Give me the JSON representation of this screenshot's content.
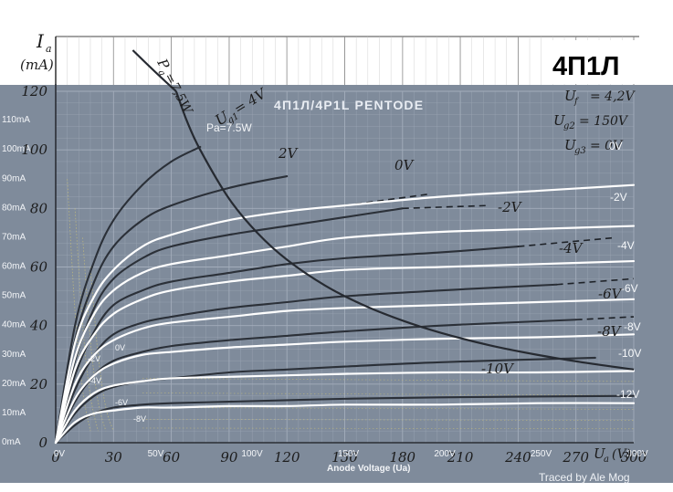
{
  "header": {
    "y_axis_symbol": "I",
    "y_axis_subscript": "a",
    "y_axis_unit": "(mA)",
    "logo_text": "4П1Л"
  },
  "overlay": {
    "title": "4П1Л/4P1L PENTODE",
    "pa_label": "Pa=7.5W",
    "x_axis_title": "Anode Voltage (Ua)",
    "credit": "Traced by Ale Mog",
    "y_ticks": [
      "0mA",
      "10mA",
      "20mA",
      "30mA",
      "40mA",
      "50mA",
      "60mA",
      "70mA",
      "80mA",
      "90mA",
      "100mA",
      "110mA"
    ],
    "x_ticks": [
      "0V",
      "50V",
      "100V",
      "150V",
      "200V",
      "250V",
      "300V"
    ],
    "curve_labels": [
      "0V",
      "-2V",
      "-4V",
      "-6V",
      "-8V",
      "-10V",
      "-12V"
    ],
    "inner_labels": [
      "0V",
      "-2V",
      "-4V",
      "-6V",
      "-8V"
    ]
  },
  "scan": {
    "y_ticks": [
      "0",
      "20",
      "40",
      "60",
      "80",
      "100",
      "120"
    ],
    "x_ticks": [
      "0",
      "30",
      "60",
      "90",
      "120",
      "150",
      "180",
      "210",
      "240",
      "270",
      "300"
    ],
    "x_unit": "U",
    "x_unit_sub": "a",
    "x_unit_suffix": "(V)",
    "pa_label": "P",
    "pa_sub": "a",
    "pa_value": "=7,5W",
    "cond_uf": "U",
    "cond_uf_sub": "f",
    "cond_uf_val": "= 4,2V",
    "cond_ug2": "U",
    "cond_ug2_sub": "g2",
    "cond_ug2_val": "= 150V",
    "cond_ug3": "U",
    "cond_ug3_sub": "g3",
    "cond_ug3_val": "= 0V",
    "ug1_label": "U",
    "ug1_sub": "g1",
    "ug1_val": "= 4V",
    "curve_labels": [
      "2V",
      "0V",
      "-2V",
      "-4V",
      "-6V",
      "-8V",
      "-10V"
    ]
  },
  "colors": {
    "panel": "#7f8b9b",
    "grid": "#a3adbb",
    "white_curve": "#ffffff",
    "dark_curve": "#2b3038",
    "hyperbola": "#262a31",
    "scan_ink": "#1c1c1c",
    "dashed": "#1e2228"
  },
  "chart_data": [
    {
      "type": "line",
      "title": "4П1Л/4P1L PENTODE",
      "xlabel": "Anode Voltage (Ua)",
      "ylabel": "",
      "xlim": [
        0,
        300
      ],
      "ylim": [
        0,
        120
      ],
      "grid": true,
      "series": [
        {
          "name": "0V",
          "color": "#ffffff",
          "x": [
            0,
            10,
            20,
            30,
            45,
            60,
            90,
            120,
            150,
            200,
            250,
            300
          ],
          "y": [
            0,
            34,
            50,
            59,
            67,
            71,
            76,
            79,
            81,
            84,
            86,
            88
          ]
        },
        {
          "name": "-2V",
          "color": "#ffffff",
          "x": [
            0,
            10,
            20,
            30,
            45,
            60,
            90,
            120,
            150,
            200,
            250,
            300
          ],
          "y": [
            0,
            29,
            44,
            52,
            58,
            61,
            64,
            67,
            70,
            72,
            73,
            74
          ]
        },
        {
          "name": "-4V",
          "color": "#ffffff",
          "x": [
            0,
            10,
            20,
            30,
            45,
            60,
            90,
            120,
            150,
            200,
            250,
            300
          ],
          "y": [
            0,
            25,
            37,
            44,
            49,
            52,
            55,
            57,
            59,
            60,
            61,
            62
          ]
        },
        {
          "name": "-6V",
          "color": "#ffffff",
          "x": [
            0,
            10,
            20,
            30,
            45,
            60,
            90,
            120,
            150,
            200,
            250,
            300
          ],
          "y": [
            0,
            20,
            30,
            35,
            39,
            41,
            43,
            45,
            46,
            47,
            48,
            49
          ]
        },
        {
          "name": "-8V",
          "color": "#ffffff",
          "x": [
            0,
            10,
            20,
            30,
            45,
            60,
            90,
            120,
            150,
            200,
            250,
            300
          ],
          "y": [
            0,
            15,
            23,
            27,
            30,
            31,
            32.5,
            33.5,
            34.5,
            35.5,
            36,
            37
          ]
        },
        {
          "name": "-10V",
          "color": "#ffffff",
          "x": [
            0,
            10,
            20,
            30,
            45,
            60,
            90,
            120,
            150,
            200,
            250,
            300
          ],
          "y": [
            0,
            11,
            17,
            19.5,
            21,
            22,
            22.5,
            23,
            23.5,
            24,
            24,
            24.5
          ]
        },
        {
          "name": "-12V",
          "color": "#ffffff",
          "x": [
            0,
            10,
            20,
            30,
            45,
            60,
            90,
            120,
            150,
            200,
            250,
            300
          ],
          "y": [
            0,
            7,
            10,
            11,
            12,
            12,
            12.5,
            12.5,
            13,
            13,
            13.5,
            13.5
          ]
        }
      ]
    },
    {
      "type": "line",
      "xlim": [
        0,
        300
      ],
      "ylim": [
        0,
        120
      ],
      "series": [
        {
          "name": "4V",
          "color": "#2b3038",
          "x": [
            0,
            10,
            20,
            30,
            45,
            60,
            75
          ],
          "y": [
            0,
            40,
            62,
            76,
            88,
            96,
            101
          ]
        },
        {
          "name": "2V",
          "color": "#2b3038",
          "x": [
            0,
            10,
            20,
            30,
            45,
            60,
            90,
            120
          ],
          "y": [
            0,
            35,
            55,
            67,
            76,
            81,
            87,
            91
          ]
        },
        {
          "name": "0V",
          "color": "#2b3038",
          "x": [
            0,
            10,
            20,
            30,
            45,
            60,
            90,
            120,
            150,
            180
          ],
          "y": [
            0,
            28,
            46,
            56,
            63,
            67,
            71,
            74,
            77,
            80
          ]
        },
        {
          "name": "-2V",
          "color": "#2b3038",
          "x": [
            0,
            10,
            20,
            30,
            45,
            60,
            90,
            120,
            150,
            200,
            240
          ],
          "y": [
            0,
            23,
            38,
            47,
            52,
            55,
            58,
            61,
            63,
            65,
            67
          ]
        },
        {
          "name": "-4V",
          "color": "#2b3038",
          "x": [
            0,
            10,
            20,
            30,
            45,
            60,
            90,
            120,
            150,
            200,
            260
          ],
          "y": [
            0,
            18,
            30,
            37,
            41,
            43,
            46,
            48,
            50,
            52,
            54
          ]
        },
        {
          "name": "-6V",
          "color": "#2b3038",
          "x": [
            0,
            10,
            20,
            30,
            45,
            60,
            90,
            120,
            150,
            200,
            270
          ],
          "y": [
            0,
            14,
            23,
            28,
            31,
            33,
            35,
            36.5,
            38,
            40,
            42
          ]
        },
        {
          "name": "-8V",
          "color": "#2b3038",
          "x": [
            0,
            10,
            20,
            30,
            45,
            60,
            90,
            120,
            150,
            200,
            280
          ],
          "y": [
            0,
            10,
            16,
            19,
            21,
            22,
            24,
            25,
            26,
            27.5,
            29
          ]
        },
        {
          "name": "-10V",
          "color": "#2b3038",
          "x": [
            0,
            10,
            20,
            30,
            45,
            60,
            90,
            120,
            150,
            200,
            300
          ],
          "y": [
            0,
            6,
            10,
            12,
            13,
            13.5,
            14,
            14.5,
            15,
            15.5,
            16
          ]
        }
      ]
    },
    {
      "type": "line",
      "xlim": [
        0,
        300
      ],
      "ylim": [
        0,
        120
      ],
      "series": [
        {
          "name": "Pa=7.5W",
          "color": "#262a31",
          "x": [
            62.5,
            68,
            75,
            90,
            105,
            120,
            140,
            160,
            180,
            200,
            225,
            250,
            275,
            300
          ],
          "y": [
            120,
            110,
            100,
            83.3,
            71.4,
            62.5,
            53.6,
            46.9,
            41.7,
            37.5,
            33.3,
            30,
            27.3,
            25
          ]
        }
      ]
    }
  ]
}
